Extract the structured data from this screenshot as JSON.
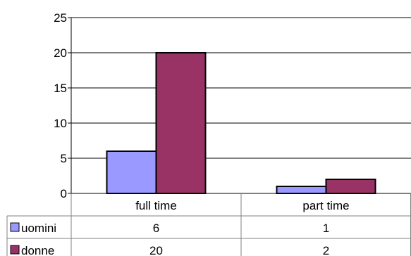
{
  "chart_data": {
    "type": "bar",
    "categories": [
      "full time",
      "part time"
    ],
    "series": [
      {
        "name": "uomini",
        "values": [
          6,
          1
        ],
        "color": "#9999ff"
      },
      {
        "name": "donne",
        "values": [
          20,
          2
        ],
        "color": "#993366"
      }
    ],
    "ylim": [
      0,
      25
    ],
    "yticks": [
      0,
      5,
      10,
      15,
      20,
      25
    ],
    "grid": true,
    "data_table": true,
    "legend": "in data table"
  }
}
